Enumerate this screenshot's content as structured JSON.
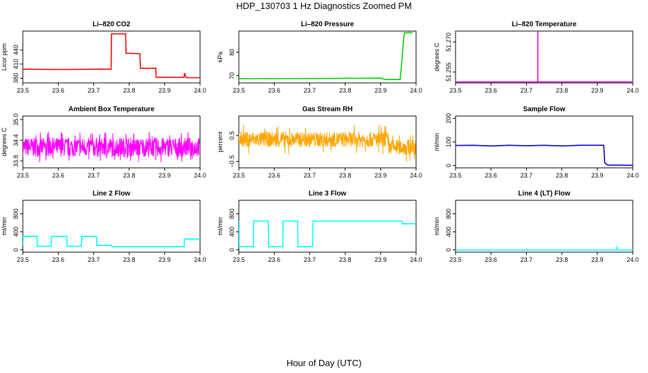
{
  "figure": {
    "title": "HDP_130703  1 Hz Diagnostics Zoomed PM",
    "xlabel": "Hour of Day (UTC)"
  },
  "chart_data": [
    {
      "type": "line",
      "title": "Li–820 CO2",
      "ylabel": "Licor ppm",
      "color": "#ff0000",
      "xlim": [
        23.5,
        24.0
      ],
      "ylim": [
        370,
        480
      ],
      "xticks": [
        23.5,
        23.6,
        23.7,
        23.8,
        23.9,
        24.0
      ],
      "xtick_labels": [
        "23.5",
        "23.6",
        "23.7",
        "23.8",
        "23.9",
        "24.0"
      ],
      "yticks": [
        380,
        410,
        440
      ],
      "ytick_labels": [
        "380",
        "410",
        "440"
      ],
      "series": [
        {
          "x": [
            23.5,
            23.6,
            23.7,
            23.749,
            23.75,
            23.79,
            23.791,
            23.83,
            23.832,
            23.875,
            23.876,
            23.955,
            23.956,
            23.96,
            23.961,
            24.0
          ],
          "y": [
            399,
            398.5,
            399,
            399,
            474,
            474,
            433,
            432,
            401,
            401,
            382,
            382,
            391,
            383,
            381,
            381
          ]
        }
      ]
    },
    {
      "type": "line",
      "title": "Li–820 Pressure",
      "ylabel": "kPa",
      "color": "#00cc00",
      "xlim": [
        23.5,
        24.0
      ],
      "ylim": [
        67,
        89
      ],
      "xticks": [
        23.5,
        23.6,
        23.7,
        23.8,
        23.9,
        24.0
      ],
      "xtick_labels": [
        "23.5",
        "23.6",
        "23.7",
        "23.8",
        "23.9",
        "24.0"
      ],
      "yticks": [
        70,
        80
      ],
      "ytick_labels": [
        "70",
        "80"
      ],
      "series": [
        {
          "x": [
            23.5,
            23.75,
            23.9,
            23.915,
            23.955,
            23.958,
            23.962,
            23.965,
            23.968,
            23.99
          ],
          "y": [
            68.8,
            68.9,
            69.0,
            68.4,
            68.4,
            73,
            80,
            86,
            88.3,
            88.3
          ]
        }
      ]
    },
    {
      "type": "line",
      "title": "Li–820 Temperature",
      "ylabel": "degrees C",
      "color": "#ff00ff",
      "xlim": [
        23.5,
        24.0
      ],
      "ylim": [
        51.2495,
        51.2755
      ],
      "xticks": [
        23.5,
        23.6,
        23.7,
        23.8,
        23.9,
        24.0
      ],
      "xtick_labels": [
        "23.5",
        "23.6",
        "23.7",
        "23.8",
        "23.9",
        "24.0"
      ],
      "yticks": [
        51.255,
        51.27
      ],
      "ytick_labels": [
        "51.255",
        "51.270"
      ],
      "series": [
        {
          "x": [
            23.5,
            23.7319,
            23.732,
            23.7321,
            24.0
          ],
          "y": [
            51.25,
            51.25,
            51.2755,
            51.25,
            51.25
          ]
        }
      ]
    },
    {
      "type": "line",
      "title": "Ambient Box Temperature",
      "ylabel": "degrees C",
      "color": "#ff00ff",
      "xlim": [
        23.5,
        24.0
      ],
      "ylim": [
        33.6,
        35.1
      ],
      "xticks": [
        23.5,
        23.6,
        23.7,
        23.8,
        23.9,
        24.0
      ],
      "xtick_labels": [
        "23.5",
        "23.6",
        "23.7",
        "23.8",
        "23.9",
        "24.0"
      ],
      "yticks": [
        33.8,
        34.4,
        35.0
      ],
      "ytick_labels": [
        "33.8",
        "34.4",
        "35.0"
      ],
      "noise": {
        "center": 34.2,
        "amp": 0.28,
        "spike": 0.45
      }
    },
    {
      "type": "line",
      "title": "Gas Stream RH",
      "ylabel": "percent",
      "color": "#ffa500",
      "xlim": [
        23.5,
        24.0
      ],
      "ylim": [
        -0.75,
        1.25
      ],
      "xticks": [
        23.5,
        23.6,
        23.7,
        23.8,
        23.9,
        24.0
      ],
      "xtick_labels": [
        "23.5",
        "23.6",
        "23.7",
        "23.8",
        "23.9",
        "24.0"
      ],
      "yticks": [
        -0.5,
        0.5
      ],
      "ytick_labels": [
        "−0.5",
        "0.5"
      ],
      "noise": {
        "center": 0.35,
        "amp": 0.3,
        "spike": 0.6,
        "shift_x": 23.92,
        "shift_center": 0.05
      }
    },
    {
      "type": "line",
      "title": "Sample Flow",
      "ylabel": "ml/min",
      "color": "#0000cc",
      "xlim": [
        23.5,
        24.0
      ],
      "ylim": [
        -10,
        210
      ],
      "xticks": [
        23.5,
        23.6,
        23.7,
        23.8,
        23.9,
        24.0
      ],
      "xtick_labels": [
        "23.5",
        "23.6",
        "23.7",
        "23.8",
        "23.9",
        "24.0"
      ],
      "yticks": [
        0,
        100,
        200
      ],
      "ytick_labels": [
        "0",
        "100",
        "200"
      ],
      "series": [
        {
          "x": [
            23.5,
            23.55,
            23.6,
            23.65,
            23.7,
            23.75,
            23.8,
            23.85,
            23.9,
            23.918,
            23.921,
            23.93,
            24.0
          ],
          "y": [
            85,
            86,
            83,
            86,
            84,
            86,
            83,
            86,
            86,
            86,
            10,
            2,
            1
          ]
        }
      ]
    },
    {
      "type": "line",
      "title": "Line 2 Flow",
      "ylabel": "ml/min",
      "color": "#00ffff",
      "xlim": [
        23.5,
        24.0
      ],
      "ylim": [
        -50,
        1100
      ],
      "xticks": [
        23.5,
        23.6,
        23.7,
        23.8,
        23.9,
        24.0
      ],
      "xtick_labels": [
        "23.5",
        "23.6",
        "23.7",
        "23.8",
        "23.9",
        "24.0"
      ],
      "yticks": [
        0,
        400,
        800
      ],
      "ytick_labels": [
        "0",
        "400",
        "800"
      ],
      "series": [
        {
          "x": [
            23.5,
            23.501,
            23.54,
            23.541,
            23.58,
            23.581,
            23.624,
            23.625,
            23.665,
            23.666,
            23.708,
            23.709,
            23.75,
            23.751,
            23.955,
            23.956,
            24.0
          ],
          "y": [
            80,
            300,
            300,
            80,
            80,
            300,
            300,
            80,
            80,
            300,
            300,
            100,
            100,
            70,
            70,
            240,
            240
          ]
        }
      ]
    },
    {
      "type": "line",
      "title": "Line 3 Flow",
      "ylabel": "ml/min",
      "color": "#00ffff",
      "xlim": [
        23.5,
        24.0
      ],
      "ylim": [
        -50,
        1100
      ],
      "xticks": [
        23.5,
        23.6,
        23.7,
        23.8,
        23.9,
        24.0
      ],
      "xtick_labels": [
        "23.5",
        "23.6",
        "23.7",
        "23.8",
        "23.9",
        "24.0"
      ],
      "yticks": [
        0,
        400,
        800
      ],
      "ytick_labels": [
        "0",
        "400",
        "800"
      ],
      "series": [
        {
          "x": [
            23.5,
            23.5005,
            23.501,
            23.541,
            23.542,
            23.583,
            23.584,
            23.624,
            23.625,
            23.666,
            23.667,
            23.708,
            23.709,
            23.71,
            23.96,
            23.961,
            24.0
          ],
          "y": [
            70,
            640,
            70,
            70,
            640,
            640,
            70,
            70,
            640,
            640,
            70,
            70,
            520,
            640,
            640,
            580,
            580
          ]
        }
      ]
    },
    {
      "type": "line",
      "title": "Line 4 (LT) Flow",
      "ylabel": "ml/min",
      "color": "#00ffff",
      "xlim": [
        23.5,
        24.0
      ],
      "ylim": [
        -50,
        1100
      ],
      "xticks": [
        23.5,
        23.6,
        23.7,
        23.8,
        23.9,
        24.0
      ],
      "xtick_labels": [
        "23.5",
        "23.6",
        "23.7",
        "23.8",
        "23.9",
        "24.0"
      ],
      "yticks": [
        0,
        400,
        800
      ],
      "ytick_labels": [
        "0",
        "400",
        "800"
      ],
      "series": [
        {
          "x": [
            23.5,
            23.955,
            23.9555,
            23.956,
            23.96,
            24.0
          ],
          "y": [
            0,
            0,
            80,
            10,
            0,
            0
          ]
        }
      ]
    }
  ]
}
